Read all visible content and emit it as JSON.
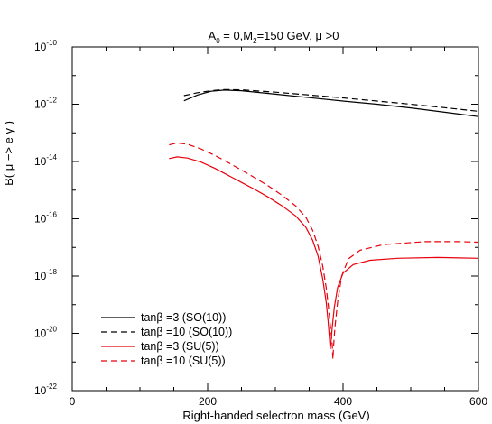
{
  "chart_data": {
    "type": "line",
    "title": {
      "a0_base": "A",
      "a0_sub": "0",
      "a0_rest": " = 0,M",
      "m2_sub": "2",
      "rest": "=150 GeV, μ >0"
    },
    "xlabel": "Right-handed selectron mass (GeV)",
    "ylabel": "B( μ −> e γ )",
    "xlim": [
      0,
      600
    ],
    "ylim_log10": [
      -22,
      -10
    ],
    "y_scale": "log",
    "grid": false,
    "legend_position": "bottom-left",
    "x_ticks": [
      "0",
      "200",
      "400",
      "600"
    ],
    "x_tick_values": [
      0,
      200,
      400,
      600
    ],
    "y_ticks": [
      {
        "base": "10",
        "exp": "-10",
        "log": -10
      },
      {
        "base": "10",
        "exp": "-12",
        "log": -12
      },
      {
        "base": "10",
        "exp": "-14",
        "log": -14
      },
      {
        "base": "10",
        "exp": "-16",
        "log": -16
      },
      {
        "base": "10",
        "exp": "-18",
        "log": -18
      },
      {
        "base": "10",
        "exp": "-20",
        "log": -20
      },
      {
        "base": "10",
        "exp": "-22",
        "log": -22
      }
    ],
    "series": [
      {
        "name": "tanβ =3 (SO(10))",
        "color": "#000000",
        "dash": "solid",
        "points": [
          [
            165,
            -11.88
          ],
          [
            185,
            -11.68
          ],
          [
            205,
            -11.55
          ],
          [
            225,
            -11.51
          ],
          [
            250,
            -11.53
          ],
          [
            300,
            -11.65
          ],
          [
            350,
            -11.77
          ],
          [
            400,
            -11.89
          ],
          [
            450,
            -12.0
          ],
          [
            500,
            -12.13
          ],
          [
            550,
            -12.28
          ],
          [
            600,
            -12.43
          ]
        ]
      },
      {
        "name": "tanβ =10 (SO(10))",
        "color": "#000000",
        "dash": "dashed",
        "points": [
          [
            165,
            -11.7
          ],
          [
            185,
            -11.6
          ],
          [
            205,
            -11.53
          ],
          [
            225,
            -11.49
          ],
          [
            250,
            -11.5
          ],
          [
            300,
            -11.58
          ],
          [
            350,
            -11.68
          ],
          [
            400,
            -11.78
          ],
          [
            450,
            -11.89
          ],
          [
            500,
            -12.0
          ],
          [
            550,
            -12.12
          ],
          [
            600,
            -12.25
          ]
        ]
      },
      {
        "name": "tanβ =3 (SU(5))",
        "color": "#e8000b",
        "dash": "solid",
        "points": [
          [
            143,
            -13.9
          ],
          [
            155,
            -13.84
          ],
          [
            170,
            -13.88
          ],
          [
            190,
            -14.02
          ],
          [
            210,
            -14.23
          ],
          [
            230,
            -14.48
          ],
          [
            250,
            -14.73
          ],
          [
            270,
            -14.98
          ],
          [
            290,
            -15.25
          ],
          [
            310,
            -15.55
          ],
          [
            330,
            -15.9
          ],
          [
            345,
            -16.3
          ],
          [
            355,
            -16.75
          ],
          [
            363,
            -17.3
          ],
          [
            370,
            -18.1
          ],
          [
            375,
            -18.9
          ],
          [
            378,
            -19.6
          ],
          [
            380,
            -20.2
          ],
          [
            381,
            -20.55
          ],
          [
            382,
            -20.35
          ],
          [
            384,
            -19.8
          ],
          [
            387,
            -19.1
          ],
          [
            392,
            -18.4
          ],
          [
            400,
            -17.9
          ],
          [
            415,
            -17.6
          ],
          [
            440,
            -17.45
          ],
          [
            480,
            -17.38
          ],
          [
            540,
            -17.35
          ],
          [
            600,
            -17.38
          ]
        ]
      },
      {
        "name": "tanβ =10 (SU(5))",
        "color": "#e8000b",
        "dash": "dashed",
        "points": [
          [
            143,
            -13.42
          ],
          [
            155,
            -13.35
          ],
          [
            170,
            -13.4
          ],
          [
            190,
            -13.56
          ],
          [
            210,
            -13.78
          ],
          [
            230,
            -14.03
          ],
          [
            250,
            -14.3
          ],
          [
            270,
            -14.57
          ],
          [
            290,
            -14.86
          ],
          [
            310,
            -15.18
          ],
          [
            330,
            -15.55
          ],
          [
            345,
            -15.95
          ],
          [
            355,
            -16.4
          ],
          [
            363,
            -16.95
          ],
          [
            370,
            -17.65
          ],
          [
            375,
            -18.4
          ],
          [
            379,
            -19.2
          ],
          [
            382,
            -19.9
          ],
          [
            384,
            -20.4
          ],
          [
            385,
            -20.9
          ],
          [
            386,
            -20.45
          ],
          [
            388,
            -19.8
          ],
          [
            392,
            -18.9
          ],
          [
            398,
            -18.0
          ],
          [
            408,
            -17.4
          ],
          [
            425,
            -17.1
          ],
          [
            460,
            -16.9
          ],
          [
            520,
            -16.8
          ],
          [
            570,
            -16.8
          ],
          [
            600,
            -16.82
          ]
        ]
      }
    ]
  }
}
